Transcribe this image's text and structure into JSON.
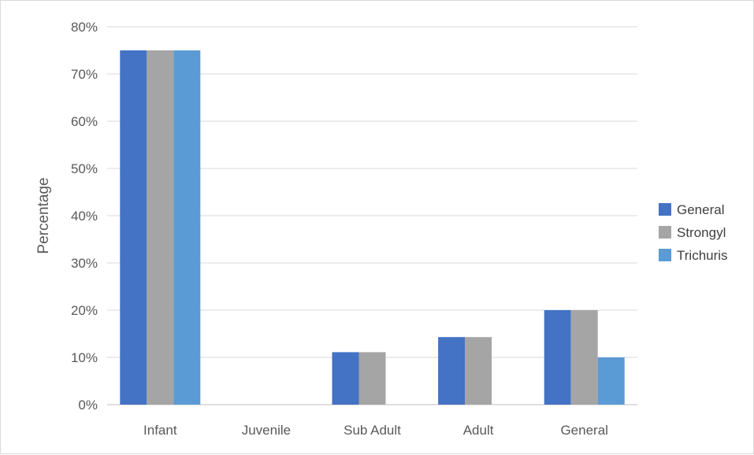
{
  "chart_data": {
    "type": "bar",
    "categories": [
      "Infant",
      "Juvenile",
      "Sub Adult",
      "Adult",
      "General"
    ],
    "series": [
      {
        "name": "General",
        "color": "#4472c4",
        "values": [
          75,
          0,
          11.1,
          14.3,
          20
        ]
      },
      {
        "name": "Strongyl",
        "color": "#a5a5a5",
        "values": [
          75,
          0,
          11.1,
          14.3,
          20
        ]
      },
      {
        "name": "Trichuris",
        "color": "#5b9bd5",
        "values": [
          75,
          0,
          0,
          0,
          10
        ]
      }
    ],
    "ylabel": "Percentage",
    "xlabel": "",
    "ylim": [
      0,
      80
    ],
    "yticks": [
      "0%",
      "10%",
      "20%",
      "30%",
      "40%",
      "50%",
      "60%",
      "70%",
      "80%"
    ],
    "grid": true,
    "legend_position": "right"
  }
}
